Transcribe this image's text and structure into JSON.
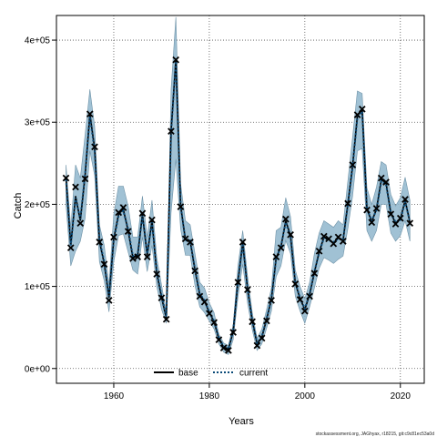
{
  "chart_data": {
    "type": "line",
    "title": "",
    "xlabel": "Years",
    "ylabel": "Catch",
    "xlim": [
      1948,
      2025
    ],
    "ylim": [
      -18000,
      430000
    ],
    "x_ticks": [
      1960,
      1980,
      2000,
      2020
    ],
    "x_tick_labels": [
      "1960",
      "1980",
      "2000",
      "2020"
    ],
    "y_ticks": [
      0,
      100000,
      200000,
      300000,
      400000
    ],
    "y_tick_labels": [
      "0e+00",
      "1e+05",
      "2e+05",
      "3e+05",
      "4e+05"
    ],
    "grid": true,
    "legend_position": "bottom",
    "band_color": "#8fb6cc",
    "line_color_base": "#000000",
    "line_color_current": "#0a4a78",
    "x": [
      1950,
      1951,
      1952,
      1953,
      1954,
      1955,
      1956,
      1957,
      1958,
      1959,
      1960,
      1961,
      1962,
      1963,
      1964,
      1965,
      1966,
      1967,
      1968,
      1969,
      1970,
      1971,
      1972,
      1973,
      1974,
      1975,
      1976,
      1977,
      1978,
      1979,
      1980,
      1981,
      1982,
      1983,
      1984,
      1985,
      1986,
      1987,
      1988,
      1989,
      1990,
      1991,
      1992,
      1993,
      1994,
      1995,
      1996,
      1997,
      1998,
      1999,
      2000,
      2001,
      2002,
      2003,
      2004,
      2005,
      2006,
      2007,
      2008,
      2009,
      2010,
      2011,
      2012,
      2013,
      2014,
      2015,
      2016,
      2017,
      2018,
      2019,
      2020,
      2021,
      2022
    ],
    "observed": [
      232000,
      147000,
      221000,
      177000,
      231000,
      310000,
      270000,
      154000,
      127000,
      83000,
      160000,
      190000,
      196000,
      167000,
      134000,
      136000,
      189000,
      136000,
      181000,
      115000,
      86000,
      60000,
      289000,
      376000,
      197000,
      158000,
      154000,
      119000,
      88000,
      81000,
      67000,
      56000,
      35000,
      25000,
      22000,
      44000,
      105000,
      154000,
      96000,
      57000,
      28000,
      37000,
      58000,
      83000,
      136000,
      147000,
      182000,
      163000,
      103000,
      84000,
      70000,
      88000,
      116000,
      143000,
      161000,
      158000,
      152000,
      160000,
      155000,
      201000,
      248000,
      309000,
      316000,
      193000,
      178000,
      195000,
      232000,
      227000,
      188000,
      176000,
      183000,
      206000,
      177000
    ],
    "series": [
      {
        "name": "base",
        "values": [
          232000,
          150000,
          210000,
          180000,
          235000,
          310000,
          268000,
          155000,
          128000,
          86000,
          158000,
          188000,
          194000,
          168000,
          135000,
          137000,
          188000,
          138000,
          180000,
          116000,
          87000,
          61000,
          289000,
          376000,
          198000,
          157000,
          155000,
          120000,
          90000,
          82000,
          68000,
          57000,
          36000,
          26000,
          23000,
          45000,
          106000,
          153000,
          97000,
          58000,
          30000,
          38000,
          60000,
          84000,
          135000,
          148000,
          180000,
          162000,
          104000,
          85000,
          72000,
          90000,
          117000,
          142000,
          160000,
          157000,
          153000,
          159000,
          156000,
          200000,
          247000,
          308000,
          315000,
          194000,
          179000,
          194000,
          230000,
          226000,
          189000,
          177000,
          182000,
          205000,
          178000
        ]
      },
      {
        "name": "current",
        "values": [
          230000,
          150000,
          208000,
          182000,
          237000,
          307000,
          265000,
          157000,
          130000,
          88000,
          156000,
          186000,
          192000,
          170000,
          137000,
          139000,
          186000,
          140000,
          178000,
          118000,
          89000,
          63000,
          287000,
          374000,
          199000,
          156000,
          156000,
          121000,
          91000,
          83000,
          69000,
          58000,
          37000,
          27000,
          24000,
          46000,
          107000,
          152000,
          98000,
          59000,
          31000,
          39000,
          61000,
          85000,
          134000,
          149000,
          178000,
          160000,
          105000,
          86000,
          73000,
          91000,
          118000,
          141000,
          159000,
          156000,
          154000,
          158000,
          157000,
          199000,
          245000,
          306000,
          313000,
          195000,
          180000,
          193000,
          228000,
          224000,
          190000,
          178000,
          181000,
          203000,
          179000
        ]
      }
    ],
    "band": {
      "lower": [
        200000,
        125000,
        143000,
        155000,
        183000,
        265000,
        235000,
        130000,
        107000,
        69000,
        130000,
        162000,
        164000,
        142000,
        120000,
        115000,
        160000,
        118000,
        150000,
        100000,
        72000,
        55000,
        190000,
        255000,
        170000,
        138000,
        138000,
        101000,
        75000,
        68000,
        58000,
        48000,
        30000,
        20000,
        17000,
        35000,
        87000,
        127000,
        80000,
        47000,
        22000,
        30000,
        49000,
        70000,
        112000,
        125000,
        156000,
        140000,
        88000,
        70000,
        55000,
        75000,
        98000,
        122000,
        135000,
        132000,
        128000,
        133000,
        137000,
        170000,
        210000,
        265000,
        268000,
        168000,
        155000,
        168000,
        200000,
        200000,
        165000,
        155000,
        162000,
        180000,
        155000
      ],
      "upper": [
        248000,
        172000,
        248000,
        232000,
        285000,
        340000,
        295000,
        175000,
        150000,
        102000,
        188000,
        222000,
        222000,
        198000,
        160000,
        160000,
        210000,
        160000,
        205000,
        135000,
        102000,
        68000,
        340000,
        428000,
        225000,
        180000,
        175000,
        140000,
        105000,
        98000,
        80000,
        68000,
        42000,
        31000,
        28000,
        53000,
        125000,
        168000,
        113000,
        68000,
        37000,
        48000,
        72000,
        98000,
        168000,
        172000,
        208000,
        185000,
        120000,
        100000,
        85000,
        105000,
        140000,
        165000,
        180000,
        176000,
        172000,
        180000,
        175000,
        228000,
        282000,
        338000,
        335000,
        220000,
        200000,
        221000,
        252000,
        248000,
        212000,
        198000,
        208000,
        233000,
        205000
      ]
    }
  },
  "legend": {
    "items": [
      {
        "label": "base",
        "style": "solid"
      },
      {
        "label": "current",
        "style": "dotted"
      }
    ]
  },
  "footer": {
    "text": "stockassessment.org, JAGhyax, r18215, git:c9c81ec53a0d"
  }
}
